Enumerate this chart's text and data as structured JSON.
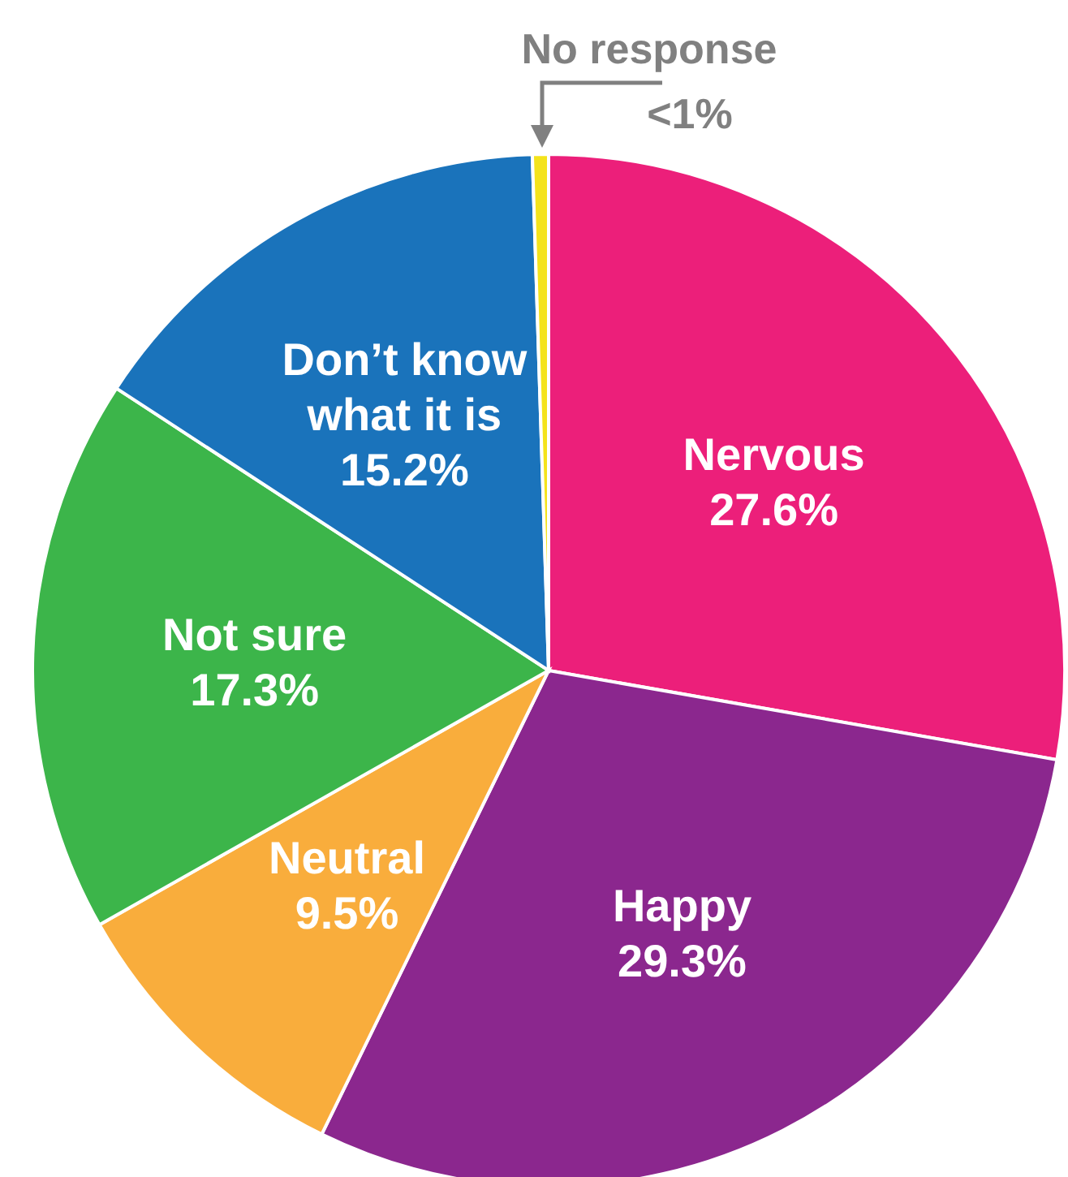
{
  "chart_data": {
    "type": "pie",
    "categories": [
      "Nervous",
      "Happy",
      "Neutral",
      "Not sure",
      "Don’t know what it is",
      "No response"
    ],
    "values": [
      27.6,
      29.3,
      9.5,
      17.3,
      15.2,
      0.5
    ],
    "value_labels": [
      "27.6%",
      "29.3%",
      "9.5%",
      "17.3%",
      "15.2%",
      "<1%"
    ],
    "colors": [
      "#ec1f7a",
      "#8b278e",
      "#f9ad3c",
      "#3cb54a",
      "#1a73bb",
      "#f4e31b"
    ]
  }
}
